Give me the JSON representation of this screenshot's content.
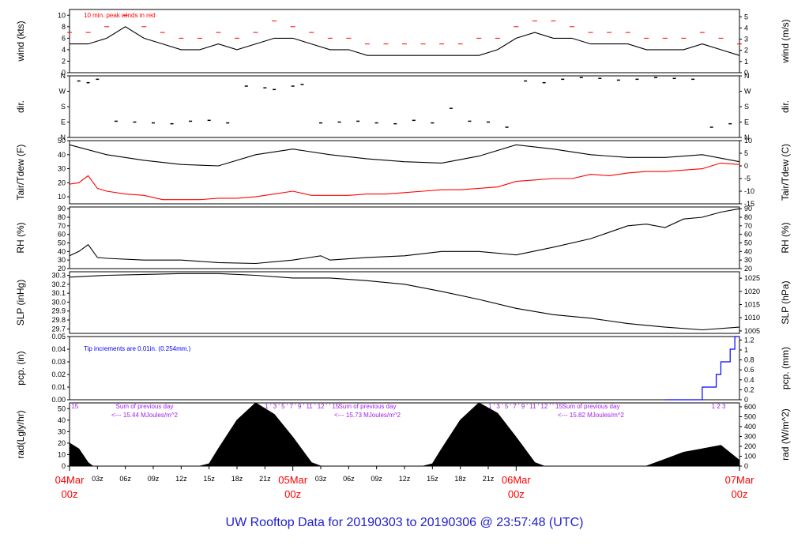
{
  "title": "UW Rooftop Data for 20190303  to  20190306 @ 23:57:48  (UTC)",
  "colors": {
    "red": "#ff0000",
    "blue": "#0000ff",
    "purple": "#a020f0",
    "black": "#000000",
    "title_blue": "#2020d0"
  },
  "x_axis": {
    "hours_total": 72,
    "hour_ticks": [
      "03z",
      "06z",
      "09z",
      "12z",
      "15z",
      "18z",
      "21z",
      "03z",
      "06z",
      "09z",
      "12z",
      "15z",
      "18z",
      "21z"
    ],
    "hour_tick_positions": [
      3,
      6,
      9,
      12,
      15,
      18,
      21,
      27,
      30,
      33,
      36,
      39,
      42,
      45
    ],
    "day_labels": [
      {
        "date": "04Mar",
        "hour": "00z",
        "at": 0
      },
      {
        "date": "05Mar",
        "hour": "00z",
        "at": 24
      },
      {
        "date": "06Mar",
        "hour": "00z",
        "at": 48
      },
      {
        "date": "07Mar",
        "hour": "00z",
        "at": 72
      }
    ]
  },
  "panels": {
    "wind": {
      "ylabel_left": "wind (kts)",
      "ylabel_right": "wind (m/s)",
      "ylim": [
        0,
        11
      ],
      "left_ticks": [
        "0",
        "2",
        "4",
        "6",
        "8",
        "10"
      ],
      "right_ticks": [
        "0",
        "1",
        "2",
        "3",
        "4",
        "5"
      ],
      "note": "10 min. peak winds in red"
    },
    "dir": {
      "ylabel_left": "dir.",
      "ylabel_right": "dir.",
      "ticks": [
        "N",
        "E",
        "S",
        "W",
        "N"
      ]
    },
    "temp": {
      "ylabel_left": "Tair/Tdew (F)",
      "ylabel_right": "Tair/Tdew (C)",
      "ylim": [
        5,
        50
      ],
      "left_ticks": [
        "10",
        "20",
        "30",
        "40",
        "50"
      ],
      "right_ticks": [
        "-15",
        "-10",
        "-5",
        "0",
        "5",
        "10"
      ]
    },
    "rh": {
      "ylabel_left": "RH (%)",
      "ylabel_right": "RH (%)",
      "ylim": [
        20,
        92
      ],
      "ticks": [
        "20",
        "30",
        "40",
        "50",
        "60",
        "70",
        "80",
        "90"
      ]
    },
    "slp": {
      "ylabel_left": "SLP (inHg)",
      "ylabel_right": "SLP (hPa)",
      "ylim": [
        29.65,
        30.34
      ],
      "left_ticks": [
        "29.7",
        "29.8",
        "29.9",
        "30.0",
        "30.1",
        "30.2",
        "30.3"
      ],
      "right_ticks": [
        "1005",
        "1010",
        "1015",
        "1020",
        "1025"
      ]
    },
    "pcp": {
      "ylabel_left": "pcp. (in)",
      "ylabel_right": "pcp. (mm)",
      "ylim": [
        0,
        0.05
      ],
      "left_ticks": [
        "0.00",
        "0.01",
        "0.02",
        "0.03",
        "0.04",
        "0.05"
      ],
      "right_ticks": [
        "0",
        "0.2",
        "0.4",
        "0.6",
        "0.8",
        "1",
        "1.2"
      ],
      "note": "Tip increments are 0.01in. (0.254mm.)"
    },
    "rad": {
      "ylabel_left": "rad(Lgly/hr)",
      "ylabel_right": "rad (W/m^2)",
      "ylim": [
        0,
        55
      ],
      "left_ticks": [
        "0",
        "10",
        "20",
        "30",
        "40",
        "50"
      ],
      "right_ticks": [
        "0",
        "100",
        "200",
        "300",
        "400",
        "500",
        "600"
      ]
    }
  },
  "rad_sums": [
    {
      "line1": "Sum of previous day",
      "line2": "<--- 15.44 MJoules/m^2"
    },
    {
      "line1": "Sum of previous day",
      "line2": "<--- 15.73 MJoules/m^2"
    },
    {
      "line1": "Sum of previous day",
      "line2": "<--- 15.82 MJoules/m^2"
    }
  ],
  "rad_top_digits": [
    {
      "text": "15",
      "at": 0.2
    },
    {
      "text": "1 ' 3 ' 5 ' 7 ' 9 ' 11 ' 12 ' ' 15",
      "at": 21.0
    },
    {
      "text": "1 ' 3 ' 5 ' 7 ' 9 ' 11 ' 12 ' ' 15",
      "at": 45.0
    },
    {
      "text": "1    2    3",
      "at": 69.0
    }
  ],
  "chart_data": {
    "type": "line",
    "x_units": "hours since 04Mar 00z",
    "series": [
      {
        "name": "wind",
        "panel": "wind",
        "color": "#000000",
        "x": [
          0,
          2,
          4,
          6,
          8,
          10,
          12,
          14,
          16,
          18,
          20,
          22,
          24,
          26,
          28,
          30,
          32,
          34,
          36,
          38,
          40,
          42,
          44,
          46,
          48,
          50,
          52,
          54,
          56,
          58,
          60,
          62,
          64,
          66,
          68,
          70,
          72
        ],
        "y": [
          5,
          5,
          6,
          8,
          6,
          5,
          4,
          4,
          5,
          4,
          5,
          6,
          6,
          5,
          4,
          4,
          3,
          3,
          3,
          3,
          3,
          3,
          3,
          4,
          6,
          7,
          6,
          6,
          5,
          5,
          5,
          4,
          4,
          4,
          5,
          4,
          3
        ]
      },
      {
        "name": "peak wind",
        "panel": "wind",
        "color": "#ff0000",
        "x": [
          0,
          2,
          4,
          6,
          8,
          10,
          12,
          14,
          16,
          18,
          20,
          22,
          24,
          26,
          28,
          30,
          32,
          34,
          36,
          38,
          40,
          42,
          44,
          46,
          48,
          50,
          52,
          54,
          56,
          58,
          60,
          62,
          64,
          66,
          68,
          70,
          72
        ],
        "y": [
          7,
          7,
          8,
          10,
          8,
          7,
          6,
          6,
          7,
          6,
          7,
          9,
          8,
          7,
          6,
          6,
          5,
          5,
          5,
          5,
          5,
          5,
          6,
          6,
          8,
          9,
          9,
          8,
          7,
          7,
          7,
          6,
          6,
          6,
          7,
          6,
          5
        ]
      },
      {
        "name": "Tair",
        "panel": "temp",
        "color": "#000000",
        "x": [
          0,
          4,
          8,
          12,
          16,
          20,
          24,
          28,
          32,
          36,
          40,
          44,
          48,
          52,
          56,
          60,
          64,
          68,
          72
        ],
        "y": [
          47,
          40,
          36,
          33,
          32,
          40,
          44,
          40,
          37,
          35,
          34,
          39,
          47,
          44,
          40,
          38,
          38,
          40,
          35
        ]
      },
      {
        "name": "Tdew",
        "panel": "temp",
        "color": "#ff0000",
        "x": [
          0,
          1,
          2,
          3,
          4,
          6,
          8,
          10,
          12,
          14,
          16,
          18,
          20,
          22,
          24,
          26,
          28,
          30,
          32,
          34,
          36,
          38,
          40,
          42,
          44,
          46,
          48,
          50,
          52,
          54,
          56,
          58,
          60,
          62,
          64,
          66,
          68,
          70,
          72
        ],
        "y": [
          19,
          20,
          25,
          16,
          14,
          12,
          11,
          8,
          8,
          8,
          9,
          9,
          10,
          12,
          14,
          11,
          11,
          11,
          12,
          12,
          13,
          14,
          15,
          15,
          16,
          17,
          21,
          22,
          23,
          23,
          26,
          25,
          27,
          28,
          28,
          29,
          30,
          34,
          33
        ]
      },
      {
        "name": "RH",
        "panel": "rh",
        "color": "#000000",
        "x": [
          0,
          1,
          2,
          3,
          4,
          8,
          12,
          16,
          20,
          24,
          27,
          28,
          32,
          36,
          40,
          44,
          48,
          52,
          56,
          60,
          62,
          64,
          66,
          68,
          70,
          72
        ],
        "y": [
          35,
          40,
          48,
          33,
          32,
          30,
          30,
          27,
          26,
          30,
          35,
          30,
          33,
          35,
          40,
          40,
          36,
          45,
          55,
          70,
          72,
          68,
          78,
          80,
          86,
          90
        ]
      },
      {
        "name": "SLP",
        "panel": "slp",
        "color": "#000000",
        "x": [
          0,
          4,
          8,
          12,
          16,
          20,
          24,
          28,
          32,
          36,
          40,
          44,
          48,
          52,
          56,
          60,
          64,
          68,
          72
        ],
        "y": [
          30.28,
          30.3,
          30.31,
          30.32,
          30.32,
          30.3,
          30.27,
          30.27,
          30.24,
          30.2,
          30.12,
          30.03,
          29.93,
          29.86,
          29.82,
          29.76,
          29.72,
          29.69,
          29.72
        ]
      },
      {
        "name": "pcp",
        "panel": "pcp",
        "color": "#0000ff",
        "x": [
          64,
          66.5,
          68,
          68.5,
          69.5,
          70,
          71,
          71.5,
          72
        ],
        "y": [
          0,
          0,
          0.01,
          0.01,
          0.02,
          0.03,
          0.04,
          0.05,
          0.05
        ]
      },
      {
        "name": "rad",
        "panel": "rad",
        "color": "#000000",
        "x": [
          0,
          1,
          2,
          2.5,
          14,
          15,
          16,
          18,
          20,
          22,
          24,
          26,
          27,
          38,
          39,
          40,
          42,
          44,
          46,
          48,
          50,
          51,
          62,
          64,
          66,
          68,
          70,
          72
        ],
        "y": [
          20,
          15,
          3,
          0,
          0,
          2,
          15,
          40,
          55,
          45,
          25,
          3,
          0,
          0,
          2,
          15,
          40,
          55,
          46,
          25,
          3,
          0,
          0,
          6,
          12,
          15,
          18,
          5
        ]
      }
    ],
    "dir_points": {
      "x": [
        1,
        2,
        3,
        5,
        7,
        9,
        11,
        13,
        15,
        17,
        19,
        21,
        22,
        24,
        25,
        27,
        29,
        31,
        33,
        35,
        37,
        39,
        41,
        43,
        45,
        47,
        49,
        51,
        53,
        55,
        57,
        59,
        61,
        63,
        65,
        67,
        69,
        71
      ],
      "y": [
        330,
        320,
        340,
        95,
        90,
        85,
        80,
        95,
        100,
        85,
        300,
        290,
        280,
        300,
        310,
        85,
        90,
        95,
        85,
        80,
        100,
        85,
        170,
        95,
        90,
        60,
        330,
        320,
        340,
        350,
        345,
        335,
        340,
        350,
        345,
        340,
        60,
        80
      ]
    }
  }
}
